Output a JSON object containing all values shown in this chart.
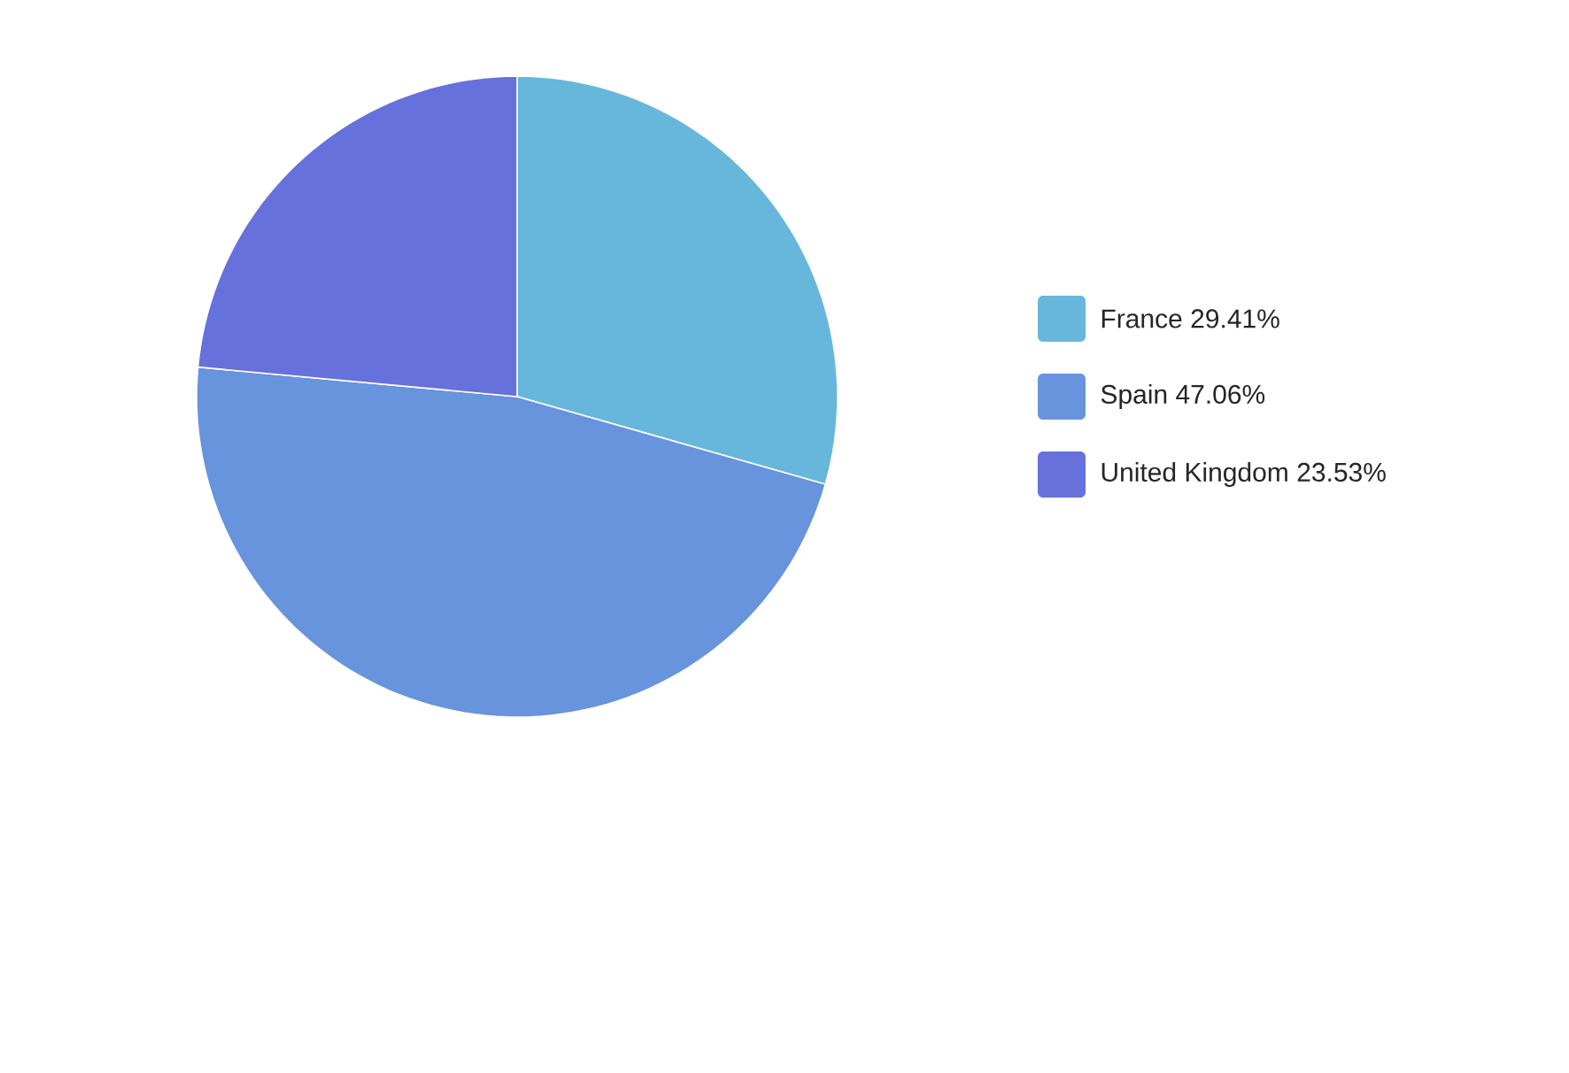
{
  "chart_data": {
    "type": "pie",
    "categories": [
      "France",
      "Spain",
      "United Kingdom"
    ],
    "values": [
      29.41,
      47.06,
      23.53
    ],
    "value_labels": [
      "29.41%",
      "47.06%",
      "23.53%"
    ],
    "colors": [
      "#67b7dc",
      "#6794dc",
      "#6771dc"
    ],
    "legend": "right"
  }
}
